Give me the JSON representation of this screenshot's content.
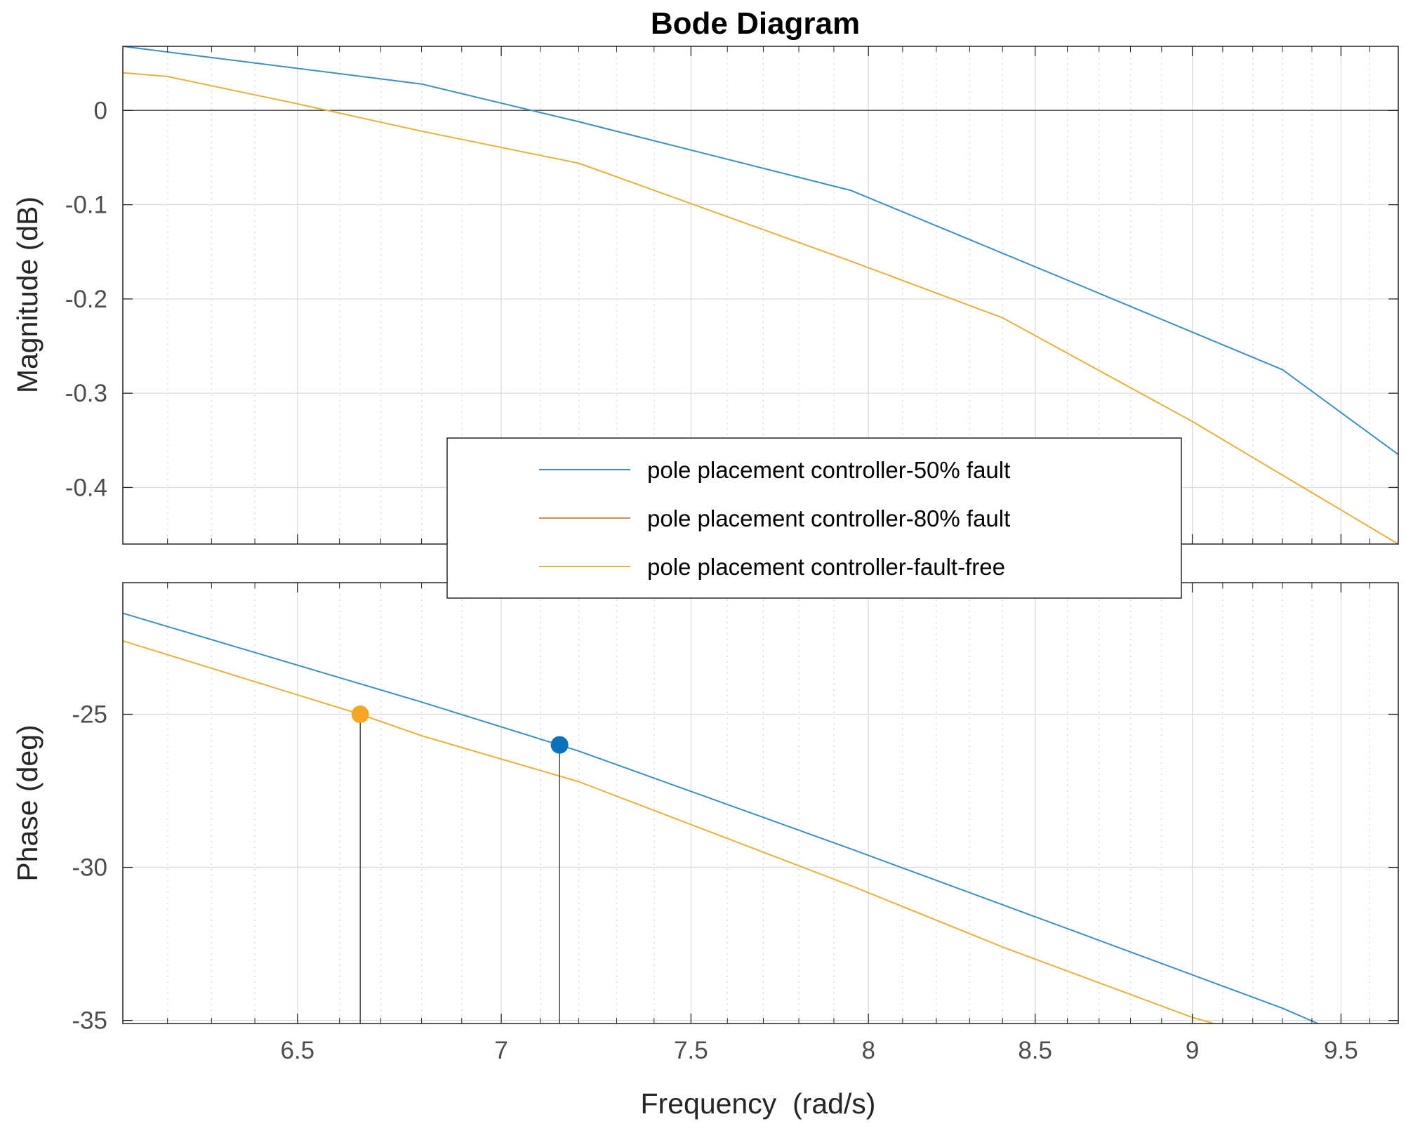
{
  "chart_data": {
    "type": "line",
    "title": "Bode Diagram",
    "xlabel": "Frequency  (rad/s)",
    "xscale": "log",
    "xlim": [
      6.1,
      9.7
    ],
    "xticks": [
      6.5,
      7,
      7.5,
      8,
      8.5,
      9,
      9.5
    ],
    "xtick_labels": [
      "6.5",
      "7",
      "7.5",
      "8",
      "8.5",
      "9",
      "9.5"
    ],
    "grid": true,
    "minor_grid": true,
    "legend_position": "center",
    "panels": [
      {
        "name": "magnitude",
        "ylabel": "Magnitude (dB)",
        "ylim": [
          -0.46,
          0.068
        ],
        "yticks": [
          0,
          -0.1,
          -0.2,
          -0.3,
          -0.4
        ],
        "ytick_labels": [
          "0",
          "-0.1",
          "-0.2",
          "-0.3",
          "-0.4"
        ],
        "series": [
          {
            "name": "pole placement controller-50% fault",
            "color": "#3a90c4",
            "x": [
              6.1,
              6.8,
              7.2,
              7.95,
              8.6,
              9.3,
              9.7
            ],
            "y": [
              0.068,
              0.028,
              -0.012,
              -0.085,
              -0.18,
              -0.275,
              -0.365
            ]
          },
          {
            "name": "pole placement controller-fault-free",
            "color": "#e8b13a",
            "x": [
              6.1,
              6.2,
              6.5,
              6.8,
              7.2,
              7.95,
              8.4,
              9.0,
              9.7
            ],
            "y": [
              0.04,
              0.036,
              0.007,
              -0.022,
              -0.056,
              -0.16,
              -0.22,
              -0.33,
              -0.46
            ]
          }
        ]
      },
      {
        "name": "phase",
        "ylabel": "Phase (deg)",
        "ylim": [
          -35.1,
          -20.7
        ],
        "yticks": [
          -25,
          -30,
          -35
        ],
        "ytick_labels": [
          "-25",
          "-30",
          "-35"
        ],
        "series": [
          {
            "name": "pole placement controller-50% fault",
            "color": "#3a90c4",
            "x": [
              6.1,
              6.8,
              7.2,
              7.95,
              8.6,
              9.3,
              9.42
            ],
            "y": [
              -21.7,
              -24.6,
              -26.2,
              -29.4,
              -32.0,
              -34.6,
              -35.1
            ]
          },
          {
            "name": "pole placement controller-fault-free",
            "color": "#e8b13a",
            "x": [
              6.1,
              6.65,
              6.8,
              7.2,
              7.95,
              8.4,
              9.0,
              9.07
            ],
            "y": [
              -22.6,
              -25.0,
              -25.7,
              -27.2,
              -30.6,
              -32.6,
              -34.9,
              -35.1
            ]
          }
        ],
        "markers": [
          {
            "x": 6.65,
            "y": -25.0,
            "color": "#f5a623",
            "series": "pole placement controller-fault-free"
          },
          {
            "x": 7.15,
            "y": -26.0,
            "color": "#0a72bd",
            "series": "pole placement controller-50% fault"
          }
        ]
      }
    ],
    "legend": [
      {
        "label": "pole placement controller-50% fault",
        "color": "#3a90c4"
      },
      {
        "label": "pole placement controller-80% fault",
        "color": "#d98a55"
      },
      {
        "label": "pole placement controller-fault-free",
        "color": "#e8b13a"
      }
    ]
  }
}
